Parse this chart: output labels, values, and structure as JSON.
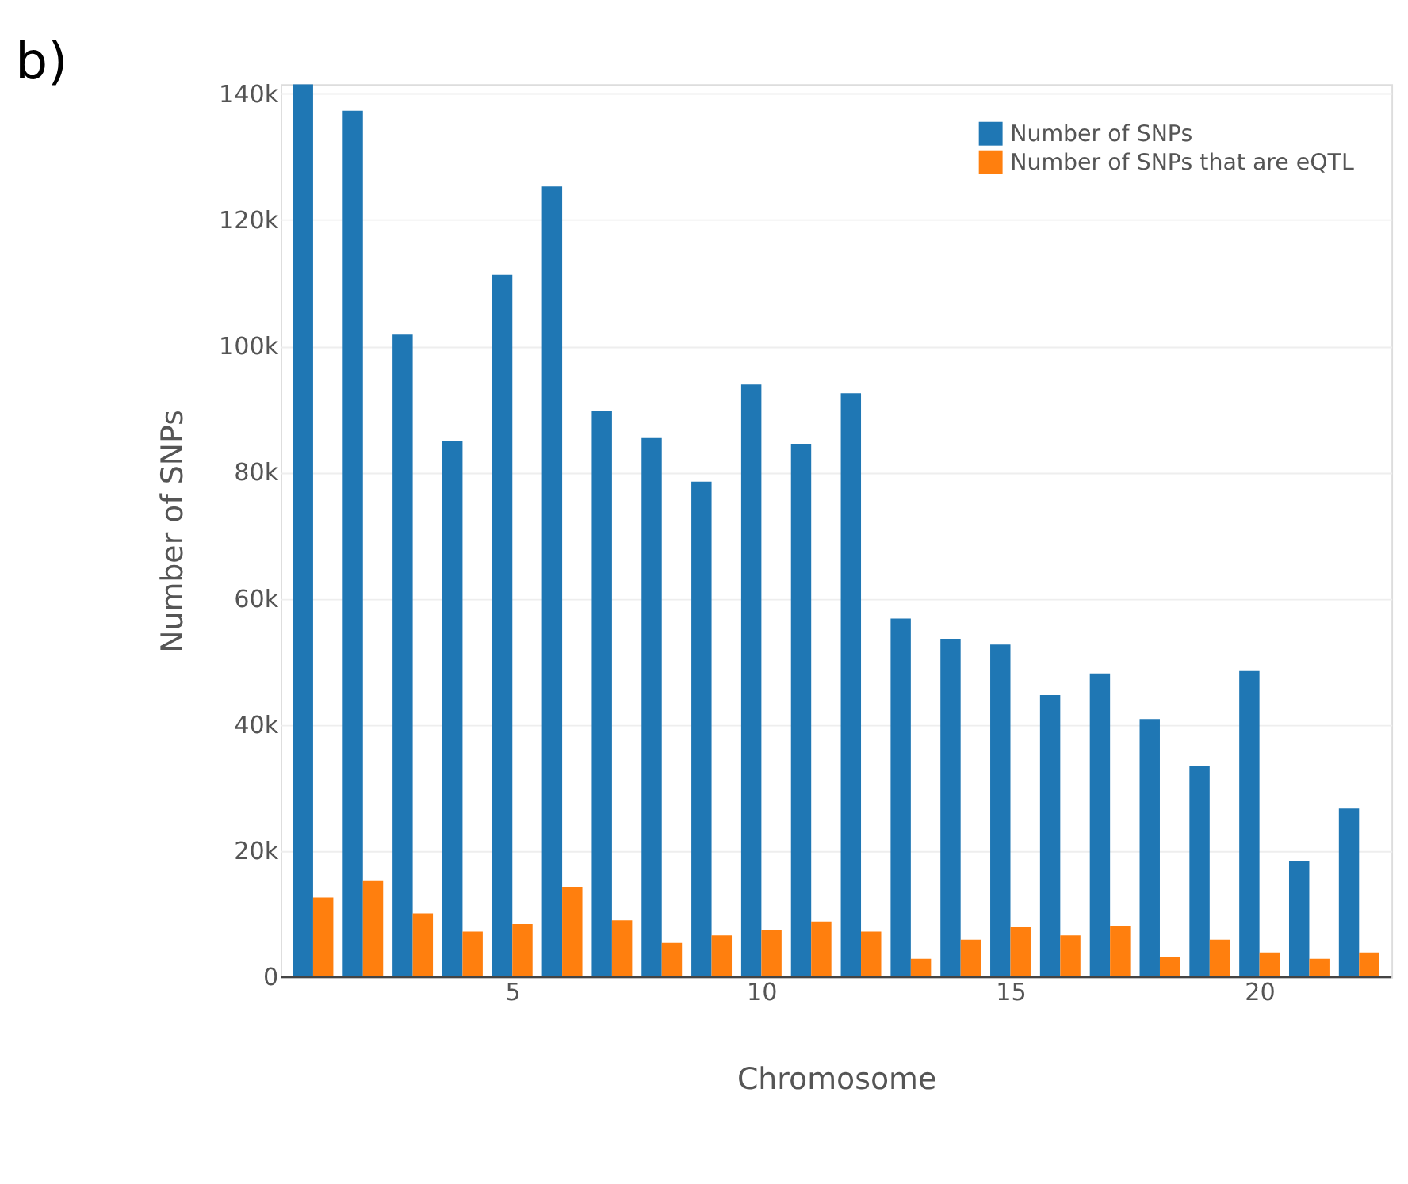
{
  "chart_data": {
    "type": "bar",
    "xlabel": "Chromosome",
    "ylabel": "Number of SNPs",
    "annotations": [
      "b)"
    ],
    "x": [
      1,
      2,
      3,
      4,
      5,
      6,
      7,
      8,
      9,
      10,
      11,
      12,
      13,
      14,
      15,
      16,
      17,
      18,
      19,
      20,
      21,
      22
    ],
    "series": [
      {
        "name": "Number of SNPs",
        "color": "#1f77b4",
        "values": [
          141500,
          137300,
          101800,
          84900,
          111300,
          125300,
          89700,
          85400,
          78500,
          93900,
          84500,
          92500,
          56800,
          53600,
          52700,
          44700,
          48100,
          40900,
          33400,
          48500,
          18400,
          26700
        ]
      },
      {
        "name": "Number of SNPs that are eQTL",
        "color": "#ff7f0e",
        "values": [
          12600,
          15200,
          10100,
          7200,
          8400,
          14300,
          9000,
          5400,
          6600,
          7400,
          8800,
          7200,
          2900,
          5900,
          7900,
          6600,
          8100,
          3100,
          5900,
          3900,
          2900,
          3900
        ]
      }
    ],
    "xlim": [
      0.5,
      22.5
    ],
    "xticks": [
      5,
      10,
      15,
      20
    ],
    "ylim": [
      0,
      141500
    ],
    "yticks": [
      {
        "value": 0,
        "label": "0"
      },
      {
        "value": 20000,
        "label": "20k"
      },
      {
        "value": 40000,
        "label": "40k"
      },
      {
        "value": 60000,
        "label": "60k"
      },
      {
        "value": 80000,
        "label": "80k"
      },
      {
        "value": 100000,
        "label": "100k"
      },
      {
        "value": 120000,
        "label": "120k"
      },
      {
        "value": 140000,
        "label": "140k"
      }
    ],
    "grid": "y",
    "legend": "top right"
  }
}
